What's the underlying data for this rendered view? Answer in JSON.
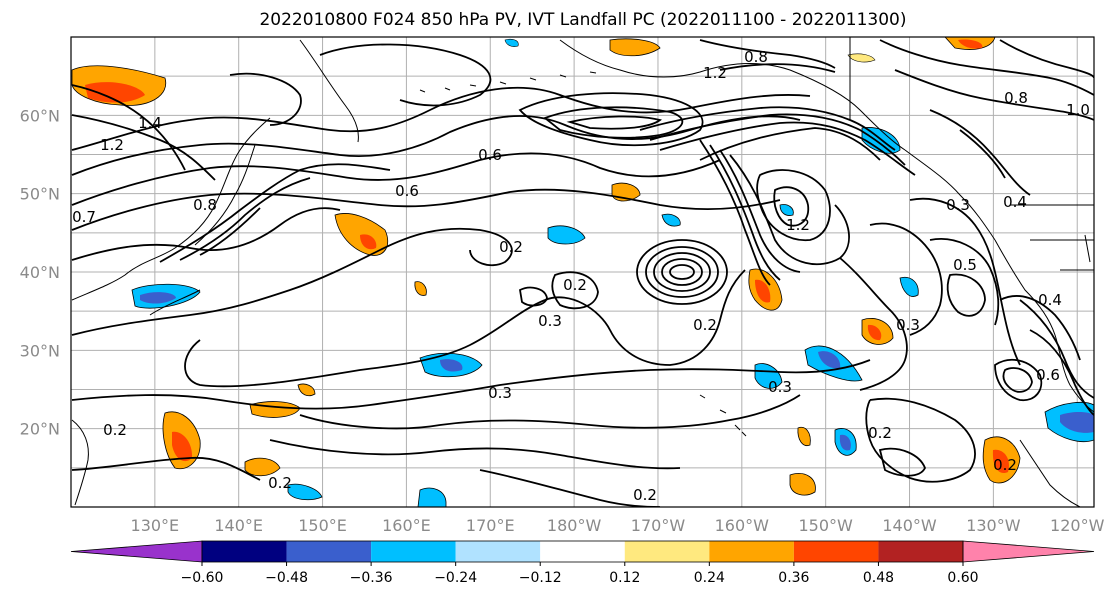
{
  "title": "2022010800 F024 850 hPa PV, IVT Landfall PC (2022011100 - 2022011300)",
  "lat_ticks": [
    "60°N",
    "50°N",
    "40°N",
    "30°N",
    "20°N"
  ],
  "lon_ticks": [
    "130°E",
    "140°E",
    "150°E",
    "160°E",
    "170°E",
    "180°W",
    "170°W",
    "160°W",
    "150°W",
    "140°W",
    "130°W",
    "120°W"
  ],
  "colorbar": {
    "colors": [
      "#9932CC",
      "#000080",
      "#3A5FCD",
      "#00BFFF",
      "#B0E2FF",
      "#FFFFFF",
      "#FFE97F",
      "#FFA500",
      "#FF4500",
      "#B22222",
      "#FF82AB"
    ],
    "labels": [
      "−0.60",
      "−0.48",
      "−0.36",
      "−0.24",
      "−0.12",
      "0.12",
      "0.24",
      "0.36",
      "0.48",
      "0.60"
    ]
  },
  "contour_labels": [
    "1.4",
    "1.2",
    "0.8",
    "0.7",
    "0.6",
    "0.2",
    "0.3",
    "0.6",
    "0.2",
    "0.3",
    "0.2",
    "0.3",
    "0.2",
    "0.2",
    "0.2",
    "1.2",
    "0.8",
    "1.2",
    "0.4",
    "0.5",
    "0.3",
    "0.3",
    "0.6",
    "0.2",
    "0.8",
    "1.0",
    "0.2",
    "0.4"
  ]
}
